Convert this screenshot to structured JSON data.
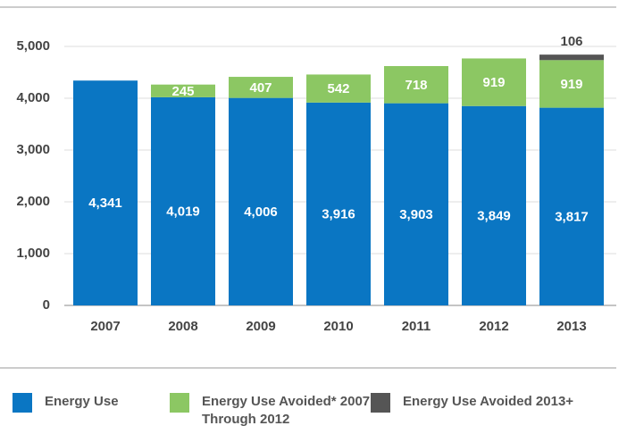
{
  "chart_data": {
    "type": "stacked-bar",
    "categories": [
      "2007",
      "2008",
      "2009",
      "2010",
      "2011",
      "2012",
      "2013"
    ],
    "series": [
      {
        "name": "Energy Use",
        "color": "#0a76c3",
        "values": [
          4341,
          4019,
          4006,
          3916,
          3903,
          3849,
          3817
        ],
        "value_labels": [
          "4,341",
          "4,019",
          "4,006",
          "3,916",
          "3,903",
          "3,849",
          "3,817"
        ]
      },
      {
        "name": "Energy Use Avoided* 2007 Through 2012",
        "color": "#8cc763",
        "values": [
          null,
          245,
          407,
          542,
          718,
          919,
          919
        ]
      },
      {
        "name": "Energy Use Avoided 2013+",
        "color": "#555555",
        "values": [
          null,
          null,
          null,
          null,
          null,
          null,
          106
        ]
      }
    ],
    "ylim": [
      0,
      5000
    ],
    "yticks": [
      0,
      {
        "value": 1000,
        "label": "1,000"
      },
      {
        "value": 2000,
        "label": "2,000"
      },
      {
        "value": 3000,
        "label": "3,000"
      },
      {
        "value": 4000,
        "label": "4,000"
      },
      {
        "value": 5000,
        "label": "5,000"
      }
    ],
    "grid": true
  }
}
